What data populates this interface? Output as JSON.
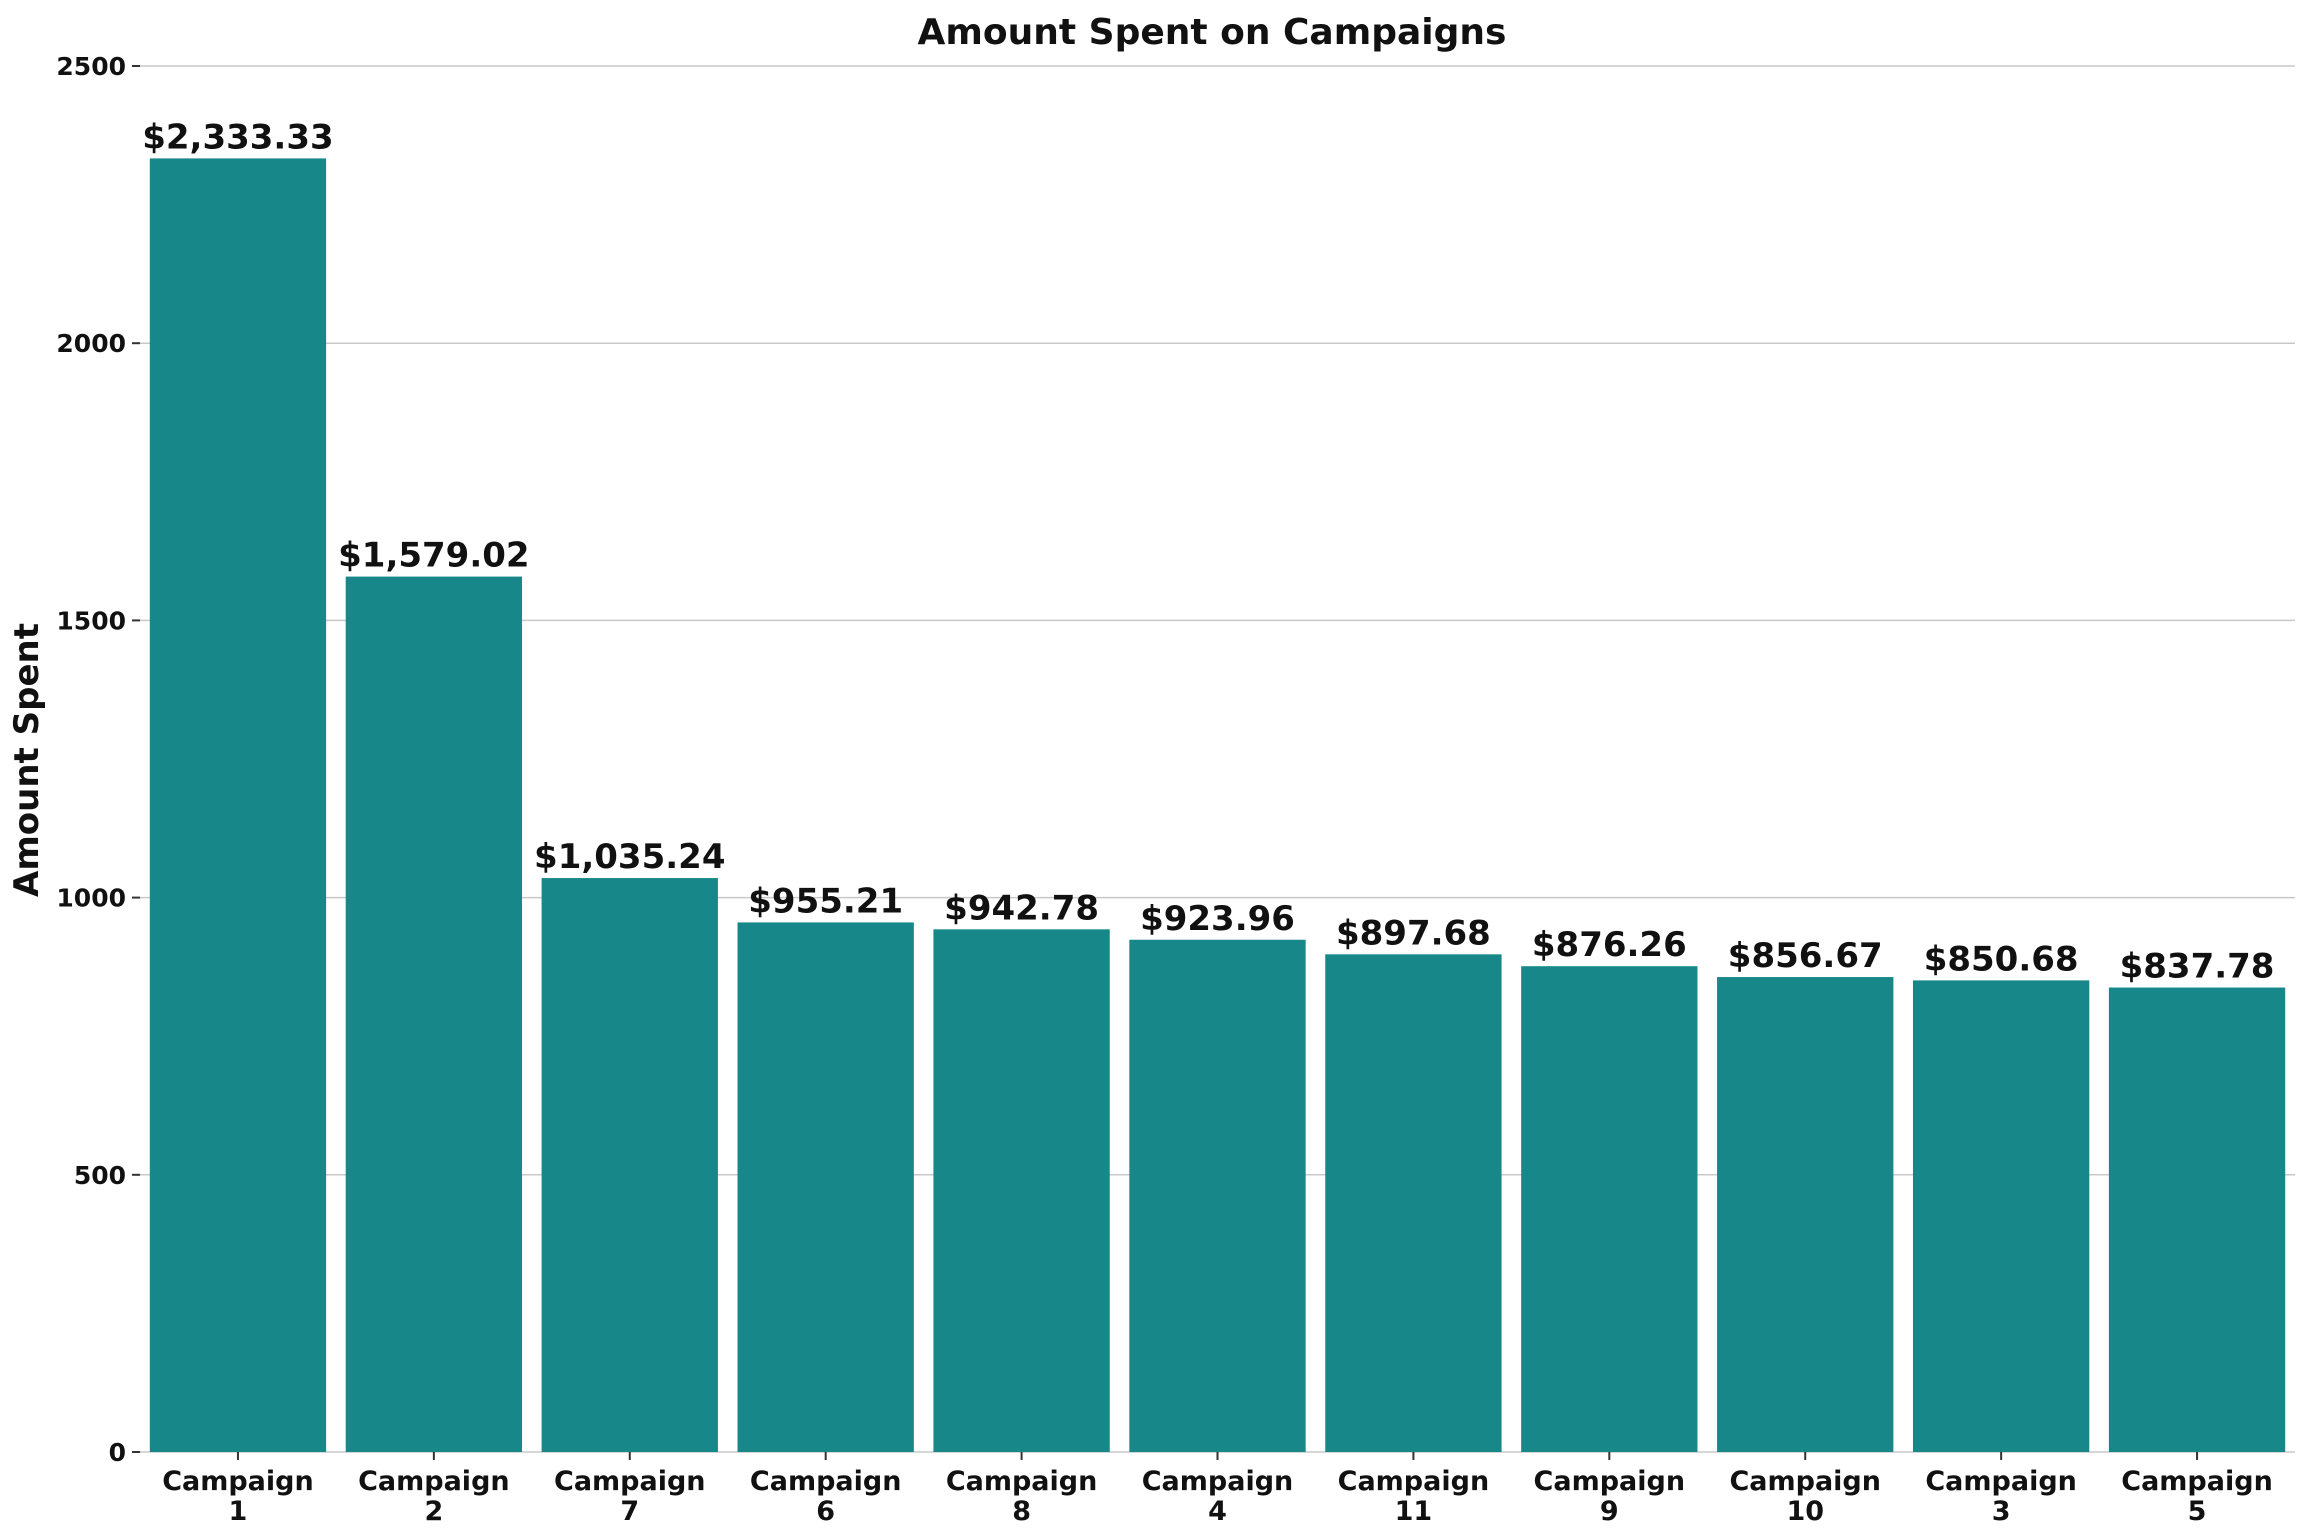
{
  "chart_data": {
    "type": "bar",
    "title": "Amount Spent on Campaigns",
    "xlabel": "",
    "ylabel": "Amount Spent",
    "ylim": [
      0,
      2500
    ],
    "yticks": [
      0,
      500,
      1000,
      1500,
      2000,
      2500
    ],
    "grid": true,
    "legend": "none",
    "bar_color": "#17878a",
    "categories": [
      [
        "Campaign",
        "1"
      ],
      [
        "Campaign",
        "2"
      ],
      [
        "Campaign",
        "7"
      ],
      [
        "Campaign",
        "6"
      ],
      [
        "Campaign",
        "8"
      ],
      [
        "Campaign",
        "4"
      ],
      [
        "Campaign",
        "11"
      ],
      [
        "Campaign",
        "9"
      ],
      [
        "Campaign",
        "10"
      ],
      [
        "Campaign",
        "3"
      ],
      [
        "Campaign",
        "5"
      ]
    ],
    "values": [
      2333.33,
      1579.02,
      1035.24,
      955.21,
      942.78,
      923.96,
      897.68,
      876.26,
      856.67,
      850.68,
      837.78
    ],
    "data_labels": [
      "$2,333.33",
      "$1,579.02",
      "$1,035.24",
      "$955.21",
      "$942.78",
      "$923.96",
      "$897.68",
      "$876.26",
      "$856.67",
      "$850.68",
      "$837.78"
    ]
  }
}
